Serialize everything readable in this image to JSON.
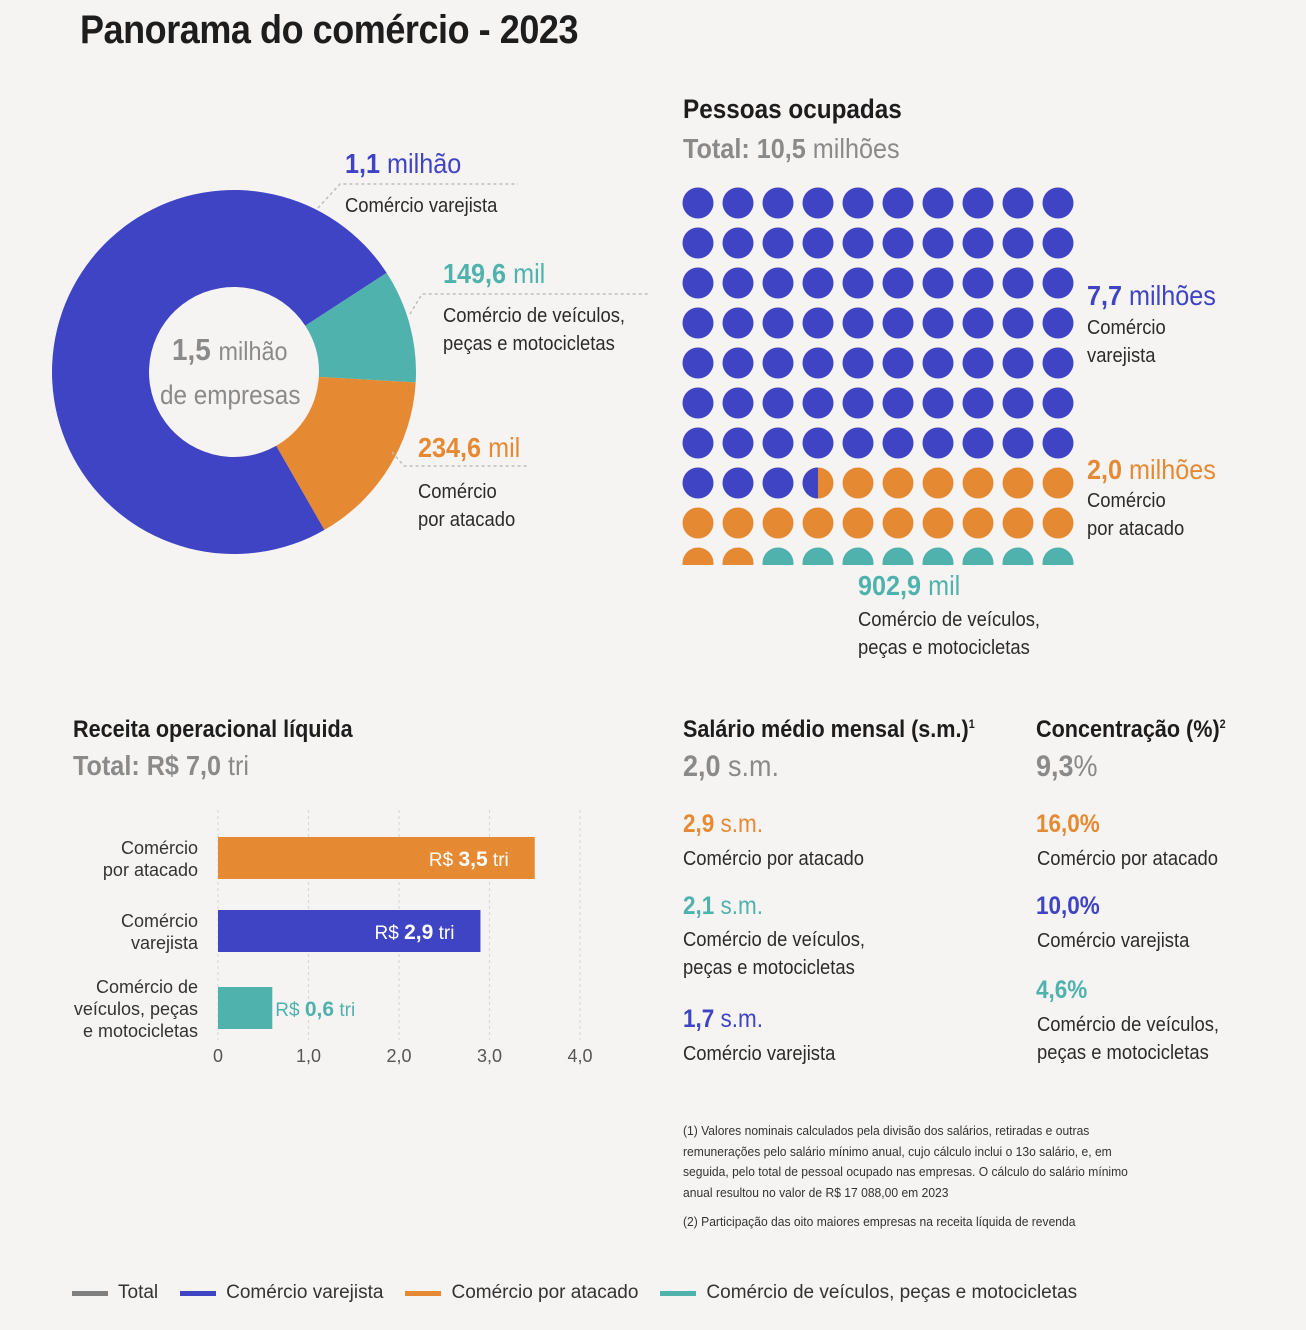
{
  "title": "Panorama do comércio - 2023",
  "colors": {
    "total": "#7f7f7f",
    "varejista": "#3f44c4",
    "atacado": "#e58a33",
    "veiculos": "#4fb2ad"
  },
  "chart_data": [
    {
      "type": "pie",
      "center_label": {
        "value": "1,5",
        "unit": "milhão",
        "line2": "de empresas"
      },
      "categories": [
        "Comércio varejista",
        "Comércio de veículos, peças e motocicletas",
        "Comércio por atacado"
      ],
      "values": [
        1.1,
        0.1496,
        0.2346
      ],
      "slice_labels": [
        {
          "value": "1,1",
          "unit": "milhão",
          "name": "Comércio varejista"
        },
        {
          "value": "149,6",
          "unit": "mil",
          "name_line1": "Comércio de veículos,",
          "name_line2": "peças e motocicletas"
        },
        {
          "value": "234,6",
          "unit": "mil",
          "name_line1": "Comércio",
          "name_line2": "por atacado"
        }
      ]
    },
    {
      "type": "waffle",
      "title": "Pessoas ocupadas",
      "total": {
        "label": "Total:",
        "value": "10,5",
        "unit": "milhões"
      },
      "rows": 10,
      "cols": 10,
      "categories": [
        "Comércio varejista",
        "Comércio por atacado",
        "Comércio de veículos, peças e motocicletas"
      ],
      "values": [
        7.7,
        2.0,
        0.9029
      ],
      "dots": [
        73.5,
        18,
        8.5
      ],
      "labels": [
        {
          "value": "7,7",
          "unit": "milhões",
          "name_line1": "Comércio",
          "name_line2": "varejista"
        },
        {
          "value": "2,0",
          "unit": "milhões",
          "name_line1": "Comércio",
          "name_line2": "por atacado"
        },
        {
          "value": "902,9",
          "unit": "mil",
          "name_line1": "Comércio de veículos,",
          "name_line2": "peças e motocicletas"
        }
      ]
    },
    {
      "type": "bar",
      "orientation": "horizontal",
      "title": "Receita operacional líquida",
      "total": {
        "label": "Total:",
        "value": "R$ 7,0",
        "unit": "tri"
      },
      "categories": [
        [
          "Comércio",
          "por atacado"
        ],
        [
          "Comércio",
          "varejista"
        ],
        [
          "Comércio de",
          "veículos, peças",
          "e motocicletas"
        ]
      ],
      "values": [
        3.5,
        2.9,
        0.6
      ],
      "value_labels": [
        {
          "prefix": "R$",
          "value": "3,5",
          "unit": "tri"
        },
        {
          "prefix": "R$",
          "value": "2,9",
          "unit": "tri"
        },
        {
          "prefix": "R$",
          "value": "0,6",
          "unit": "tri"
        }
      ],
      "xlim": [
        0,
        4.0
      ],
      "xticks": [
        0,
        1.0,
        2.0,
        3.0,
        4.0
      ],
      "xtick_labels": [
        "0",
        "1,0",
        "2,0",
        "3,0",
        "4,0"
      ]
    }
  ],
  "salario": {
    "title": "Salário médio mensal (s.m.)",
    "note": "1",
    "total": {
      "value": "2,0",
      "unit": "s.m."
    },
    "items": [
      {
        "value": "2,9",
        "unit": "s.m.",
        "name_line1": "Comércio por atacado",
        "name_line2": ""
      },
      {
        "value": "2,1",
        "unit": "s.m.",
        "name_line1": "Comércio de veículos,",
        "name_line2": "peças e motocicletas"
      },
      {
        "value": "1,7",
        "unit": "s.m.",
        "name_line1": "Comércio varejista",
        "name_line2": ""
      }
    ]
  },
  "concentracao": {
    "title": "Concentração (%)",
    "note": "2",
    "total": {
      "value": "9,3",
      "unit": "%"
    },
    "items": [
      {
        "value": "16,0",
        "unit": "%",
        "name_line1": "Comércio por atacado",
        "name_line2": ""
      },
      {
        "value": "10,0",
        "unit": "%",
        "name_line1": "Comércio varejista",
        "name_line2": ""
      },
      {
        "value": "4,6",
        "unit": "%",
        "name_line1": "Comércio de veículos,",
        "name_line2": "peças e motocicletas"
      }
    ]
  },
  "footnotes": {
    "note1_lines": [
      "(1) Valores nominais calculados pela divisão dos salários, retiradas e outras",
      "remunerações pelo salário mínimo anual, cujo cálculo inclui o 13o salário, e, em",
      "seguida, pelo total de pessoal ocupado nas empresas. O cálculo do salário mínimo",
      "anual resultou no valor de R$ 17 088,00 em 2023"
    ],
    "note2": "(2) Participação das oito maiores empresas na receita líquida de revenda"
  },
  "legend": [
    "Total",
    "Comércio varejista",
    "Comércio por atacado",
    "Comércio de veículos, peças e motocicletas"
  ]
}
